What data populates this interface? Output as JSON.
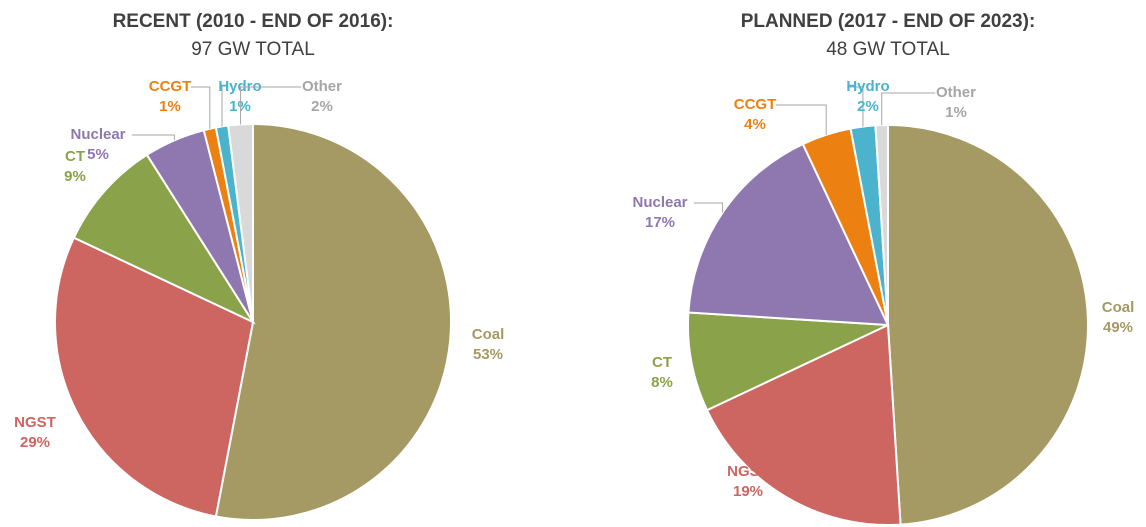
{
  "chart_data": [
    {
      "type": "pie",
      "title": "RECENT (2010 - END OF 2016):",
      "subtitle": "97 GW TOTAL",
      "categories": [
        "Coal",
        "NGST",
        "CT",
        "Nuclear",
        "CCGT",
        "Hydro",
        "Other"
      ],
      "values": [
        53,
        29,
        9,
        5,
        1,
        1,
        2
      ],
      "value_labels": [
        "53%",
        "29%",
        "9%",
        "5%",
        "1%",
        "1%",
        "2%"
      ],
      "colors": [
        "#a59964",
        "#cd6560",
        "#8aa24a",
        "#8f78b0",
        "#ec8112",
        "#4bb3cc",
        "#d9d9d9"
      ]
    },
    {
      "type": "pie",
      "title": "PLANNED (2017 - END OF 2023):",
      "subtitle": "48 GW TOTAL",
      "categories": [
        "Coal",
        "NGST",
        "CT",
        "Nuclear",
        "CCGT",
        "Hydro",
        "Other"
      ],
      "values": [
        49,
        19,
        8,
        17,
        4,
        2,
        1
      ],
      "value_labels": [
        "49%",
        "19%",
        "8%",
        "17%",
        "4%",
        "2%",
        "1%"
      ],
      "colors": [
        "#a59964",
        "#cd6560",
        "#8aa24a",
        "#8f78b0",
        "#ec8112",
        "#4bb3cc",
        "#d9d9d9"
      ]
    }
  ]
}
